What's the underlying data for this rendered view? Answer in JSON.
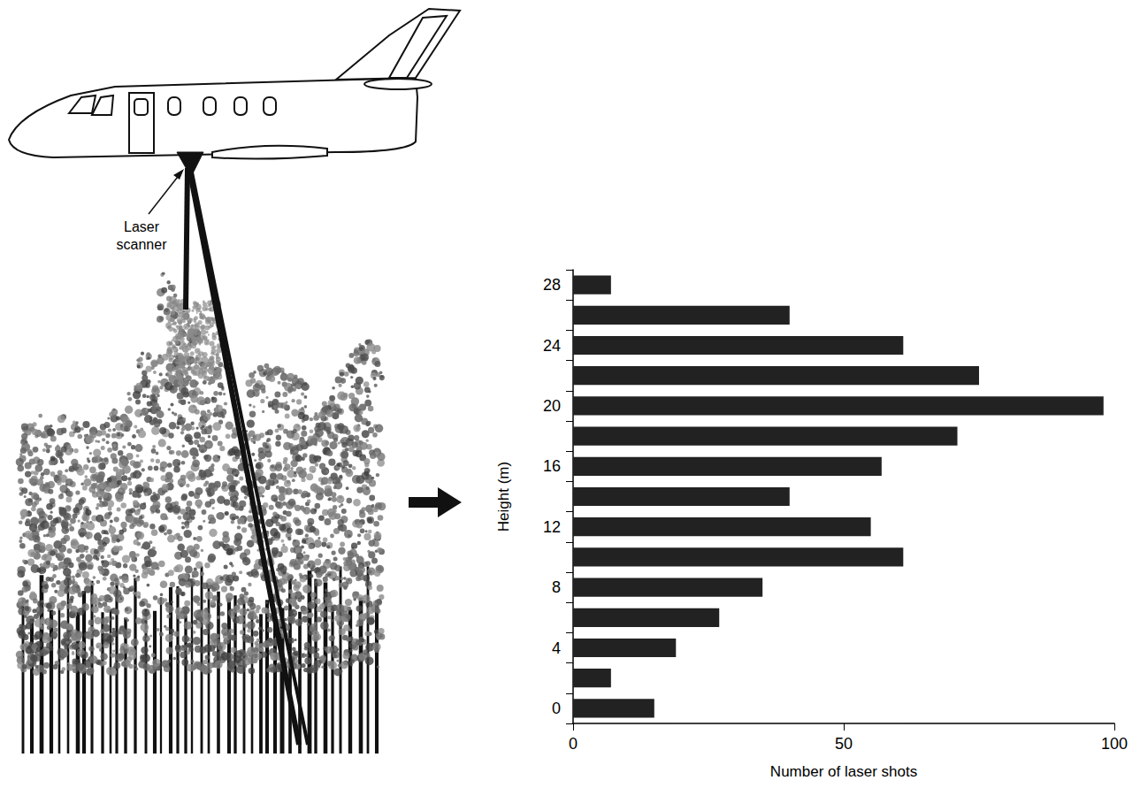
{
  "chart_data": {
    "type": "bar",
    "orientation": "horizontal",
    "categories": [
      0,
      null,
      4,
      null,
      8,
      null,
      12,
      null,
      16,
      null,
      20,
      null,
      24,
      null,
      28
    ],
    "values": [
      15,
      7,
      19,
      27,
      35,
      61,
      55,
      40,
      57,
      71,
      98,
      75,
      61,
      40,
      7
    ],
    "color": "#222222",
    "x_label": "Number of laser shots",
    "y_label": "Height (m)",
    "xlim": [
      0,
      100
    ],
    "xticks": [
      0,
      50,
      100
    ],
    "grid": false
  },
  "diagram": {
    "label": "Laser scanner"
  }
}
